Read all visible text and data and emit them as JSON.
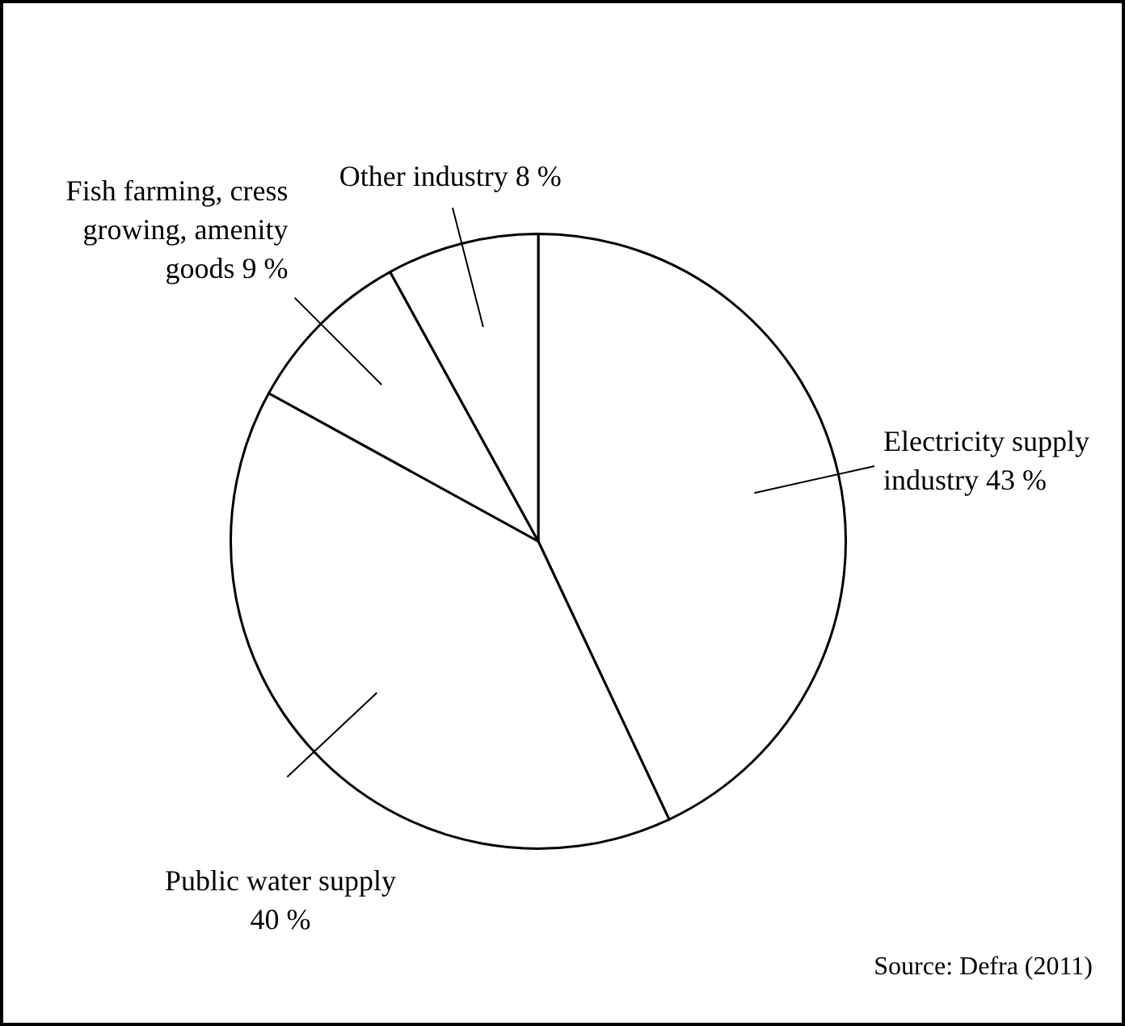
{
  "chart_data": {
    "type": "pie",
    "categories": [
      "Electricity supply industry",
      "Public water supply",
      "Fish farming, cress growing, amenity goods",
      "Other industry"
    ],
    "values": [
      43,
      40,
      9,
      8
    ],
    "value_labels": [
      "43 %",
      "40 %",
      "9 %",
      "8 %"
    ],
    "colors": [
      "#ffffff",
      "#ffffff",
      "#ffffff",
      "#ffffff"
    ],
    "legend": false,
    "annotations": [
      "Source: Defra (2011)"
    ]
  }
}
